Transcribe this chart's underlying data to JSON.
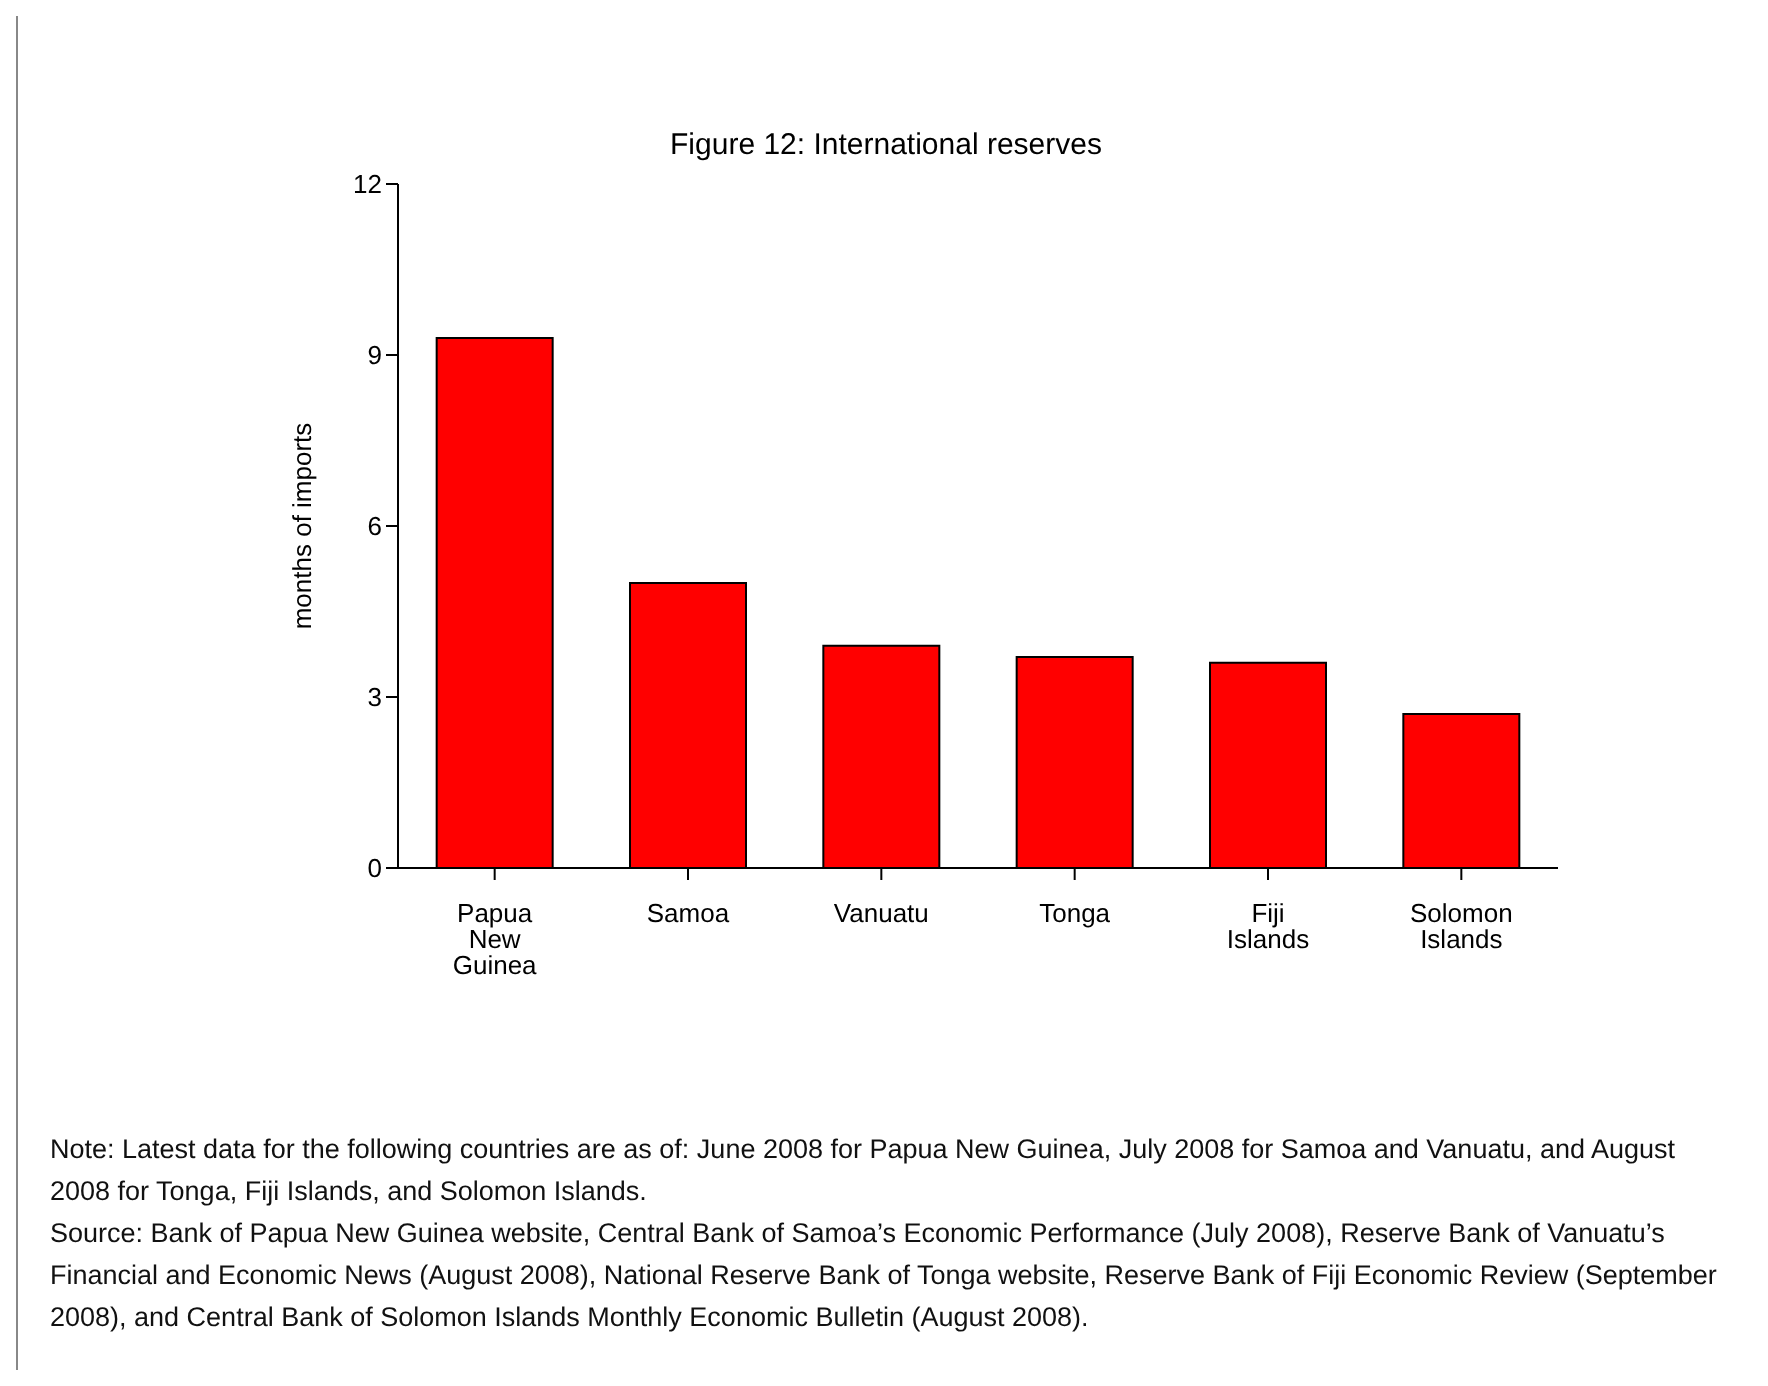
{
  "chart_data": {
    "type": "bar",
    "title": "Figure 12: International reserves",
    "ylabel": "months of imports",
    "categories": [
      "Papua New Guinea",
      "Samoa",
      "Vanuatu",
      "Tonga",
      "Fiji Islands",
      "Solomon Islands"
    ],
    "values": [
      9.3,
      5.0,
      3.9,
      3.7,
      3.6,
      2.7
    ],
    "color": "#ff0000",
    "ylim": [
      0,
      12
    ],
    "yticks": [
      0,
      3,
      6,
      9,
      12
    ],
    "grid": false,
    "legend": false,
    "annotations": [
      "Note: Latest data for the following countries are as of: June 2008 for Papua New Guinea, July 2008 for Samoa and Vanuatu, and August 2008 for Tonga, Fiji Islands, and Solomon Islands.",
      "Source: Bank of Papua New Guinea website, Central Bank of Samoa’s Economic Performance (July 2008), Reserve Bank of Vanuatu’s Financial and Economic News (August 2008), National Reserve Bank of Tonga website, Reserve Bank of Fiji Economic Review (September 2008), and Central Bank of Solomon Islands Monthly Economic Bulletin (August 2008)."
    ]
  }
}
